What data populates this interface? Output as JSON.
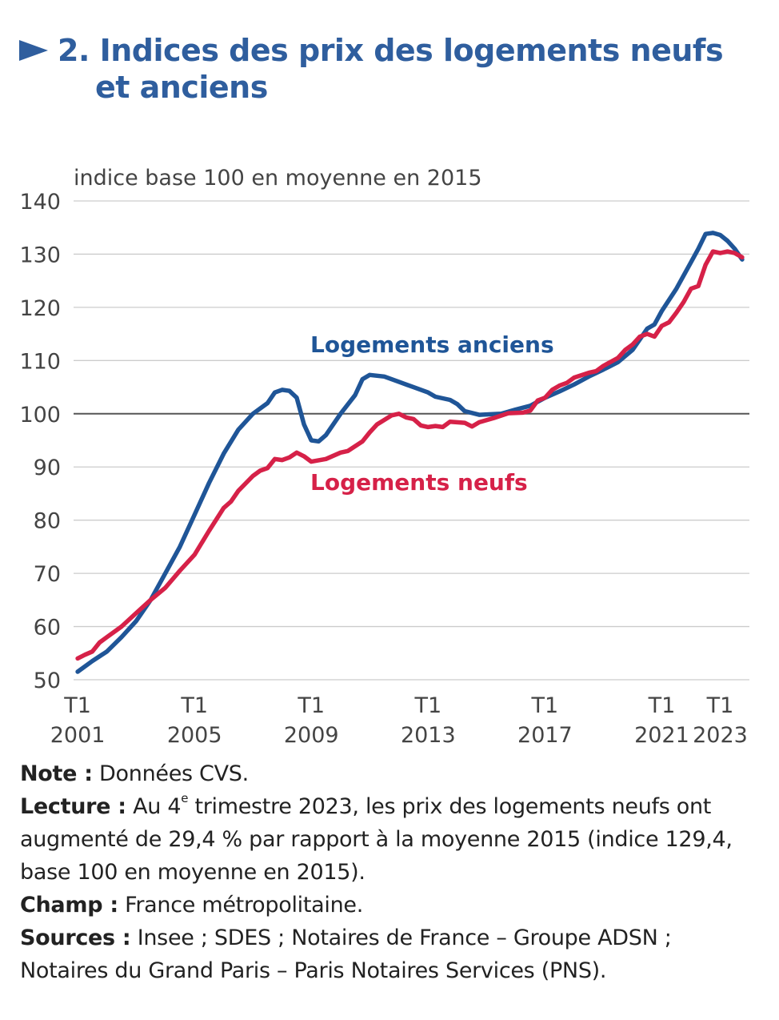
{
  "title": {
    "line1": "2. Indices des prix des logements neufs",
    "line2": "et anciens"
  },
  "chart_data": {
    "type": "line",
    "title": "2. Indices des prix des logements neufs et anciens",
    "ylabel": "indice base 100 en moyenne en 2015",
    "ylim": [
      50,
      140
    ],
    "yticks": [
      50,
      60,
      70,
      80,
      90,
      100,
      110,
      120,
      130,
      140
    ],
    "reference_line": 100,
    "xlim": [
      2000.86,
      2024.0
    ],
    "xticks": [
      {
        "x": 2001,
        "l1": "T1",
        "l2": "2001"
      },
      {
        "x": 2005,
        "l1": "T1",
        "l2": "2005"
      },
      {
        "x": 2009,
        "l1": "T1",
        "l2": "2009"
      },
      {
        "x": 2013,
        "l1": "T1",
        "l2": "2013"
      },
      {
        "x": 2017,
        "l1": "T1",
        "l2": "2017"
      },
      {
        "x": 2021,
        "l1": "T1",
        "l2": "2021"
      },
      {
        "x": 2023,
        "l1": "T1",
        "l2": "2023"
      }
    ],
    "grid": true,
    "series": [
      {
        "name": "Logements anciens",
        "color": "#1f5597",
        "points": [
          [
            2001,
            51.5
          ],
          [
            2001.5,
            53.5
          ],
          [
            2002,
            55.3
          ],
          [
            2002.5,
            58
          ],
          [
            2003,
            61
          ],
          [
            2003.5,
            65
          ],
          [
            2004,
            70
          ],
          [
            2004.5,
            75
          ],
          [
            2005,
            81
          ],
          [
            2005.5,
            87
          ],
          [
            2006,
            92.5
          ],
          [
            2006.5,
            97
          ],
          [
            2007,
            100
          ],
          [
            2007.5,
            102
          ],
          [
            2007.75,
            104
          ],
          [
            2008,
            104.5
          ],
          [
            2008.25,
            104.3
          ],
          [
            2008.5,
            103
          ],
          [
            2008.75,
            98
          ],
          [
            2009,
            95
          ],
          [
            2009.25,
            94.8
          ],
          [
            2009.5,
            96
          ],
          [
            2010,
            100
          ],
          [
            2010.5,
            103.5
          ],
          [
            2010.75,
            106.5
          ],
          [
            2011,
            107.3
          ],
          [
            2011.5,
            107
          ],
          [
            2012,
            106
          ],
          [
            2012.5,
            105
          ],
          [
            2013,
            104
          ],
          [
            2013.25,
            103.2
          ],
          [
            2013.75,
            102.6
          ],
          [
            2014,
            101.8
          ],
          [
            2014.25,
            100.5
          ],
          [
            2014.75,
            99.8
          ],
          [
            2015.5,
            100
          ],
          [
            2016,
            100.8
          ],
          [
            2016.5,
            101.5
          ],
          [
            2017,
            103
          ],
          [
            2017.5,
            104.2
          ],
          [
            2018,
            105.5
          ],
          [
            2018.5,
            107
          ],
          [
            2019,
            108.3
          ],
          [
            2019.5,
            109.7
          ],
          [
            2020,
            112
          ],
          [
            2020.25,
            114
          ],
          [
            2020.5,
            116
          ],
          [
            2020.75,
            116.8
          ],
          [
            2021,
            119.3
          ],
          [
            2021.5,
            123.5
          ],
          [
            2022,
            128.5
          ],
          [
            2022.25,
            131
          ],
          [
            2022.5,
            133.8
          ],
          [
            2022.75,
            134
          ],
          [
            2023,
            133.6
          ],
          [
            2023.25,
            132.5
          ],
          [
            2023.5,
            131
          ],
          [
            2023.75,
            129
          ]
        ]
      },
      {
        "name": "Logements neufs",
        "color": "#d62148",
        "points": [
          [
            2001,
            54
          ],
          [
            2001.25,
            54.7
          ],
          [
            2001.5,
            55.3
          ],
          [
            2001.75,
            57
          ],
          [
            2002,
            58
          ],
          [
            2002.5,
            60
          ],
          [
            2003,
            62.5
          ],
          [
            2003.5,
            65
          ],
          [
            2004,
            67.3
          ],
          [
            2004.5,
            70.5
          ],
          [
            2005,
            73.5
          ],
          [
            2005.5,
            78
          ],
          [
            2006,
            82.3
          ],
          [
            2006.25,
            83.5
          ],
          [
            2006.5,
            85.5
          ],
          [
            2007,
            88.3
          ],
          [
            2007.25,
            89.3
          ],
          [
            2007.5,
            89.8
          ],
          [
            2007.75,
            91.5
          ],
          [
            2008,
            91.3
          ],
          [
            2008.25,
            91.8
          ],
          [
            2008.5,
            92.7
          ],
          [
            2008.75,
            92
          ],
          [
            2009,
            91
          ],
          [
            2009.5,
            91.5
          ],
          [
            2010,
            92.7
          ],
          [
            2010.25,
            93
          ],
          [
            2010.75,
            94.8
          ],
          [
            2011,
            96.5
          ],
          [
            2011.25,
            98
          ],
          [
            2011.75,
            99.7
          ],
          [
            2012,
            100
          ],
          [
            2012.25,
            99.3
          ],
          [
            2012.5,
            99
          ],
          [
            2012.75,
            97.8
          ],
          [
            2013,
            97.5
          ],
          [
            2013.25,
            97.7
          ],
          [
            2013.5,
            97.5
          ],
          [
            2013.75,
            98.5
          ],
          [
            2014.25,
            98.3
          ],
          [
            2014.5,
            97.6
          ],
          [
            2014.75,
            98.4
          ],
          [
            2015.25,
            99.2
          ],
          [
            2015.75,
            100.1
          ],
          [
            2016.25,
            100.2
          ],
          [
            2016.5,
            100.6
          ],
          [
            2016.75,
            102.5
          ],
          [
            2017,
            103
          ],
          [
            2017.25,
            104.5
          ],
          [
            2017.5,
            105.3
          ],
          [
            2017.75,
            105.8
          ],
          [
            2018,
            106.8
          ],
          [
            2018.5,
            107.7
          ],
          [
            2018.75,
            108
          ],
          [
            2019,
            109
          ],
          [
            2019.5,
            110.5
          ],
          [
            2019.75,
            112
          ],
          [
            2020,
            113
          ],
          [
            2020.25,
            114.5
          ],
          [
            2020.5,
            115
          ],
          [
            2020.75,
            114.5
          ],
          [
            2021,
            116.5
          ],
          [
            2021.25,
            117.2
          ],
          [
            2021.5,
            119
          ],
          [
            2021.75,
            121
          ],
          [
            2022,
            123.5
          ],
          [
            2022.25,
            124
          ],
          [
            2022.5,
            128
          ],
          [
            2022.75,
            130.5
          ],
          [
            2023,
            130.2
          ],
          [
            2023.25,
            130.5
          ],
          [
            2023.5,
            130.2
          ],
          [
            2023.75,
            129.4
          ]
        ]
      }
    ],
    "annotations": [
      {
        "text": "Logements anciens",
        "series": 0
      },
      {
        "text": "Logements neufs",
        "series": 1
      }
    ]
  },
  "notes": {
    "note_label": "Note :",
    "note_text": " Données CVS.",
    "lecture_label": "Lecture :",
    "lecture_a": " Au 4",
    "lecture_sup": "e",
    "lecture_b": " trimestre 2023, les prix des logements neufs ont augmenté de 29,4 % par rapport à la moyenne 2015 (indice 129,4, base 100 en moyenne en 2015).",
    "champ_label": "Champ :",
    "champ_text": " France métropolitaine.",
    "sources_label": "Sources :",
    "sources_text": " Insee ; SDES ; Notaires de France – Groupe ADSN ; Notaires du Grand Paris – Paris Notaires Services (PNS)."
  }
}
